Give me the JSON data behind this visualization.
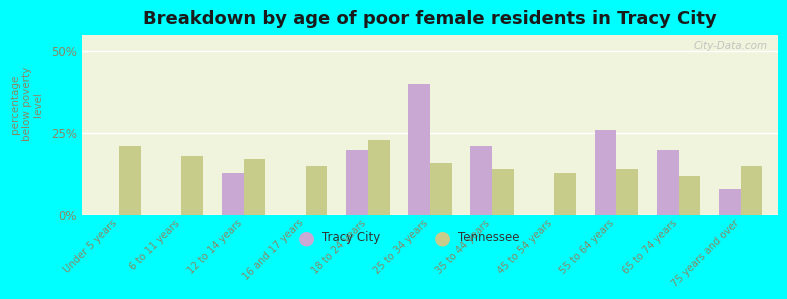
{
  "title": "Breakdown by age of poor female residents in Tracy City",
  "ylabel": "percentage\nbelow poverty\nlevel",
  "categories": [
    "Under 5 years",
    "6 to 11 years",
    "12 to 14 years",
    "16 and 17 years",
    "18 to 24 years",
    "25 to 34 years",
    "35 to 44 years",
    "45 to 54 years",
    "55 to 64 years",
    "65 to 74 years",
    "75 years and over"
  ],
  "tracy_city": [
    0,
    0,
    13,
    0,
    20,
    40,
    21,
    0,
    26,
    20,
    8
  ],
  "tennessee": [
    21,
    18,
    17,
    15,
    23,
    16,
    14,
    13,
    14,
    12,
    15
  ],
  "tracy_color": "#c9a8d4",
  "tennessee_color": "#c8cc8a",
  "background_plot_top": "#f0f4dc",
  "background_plot_bottom": "#e0edd8",
  "background_fig": "#00ffff",
  "ylim": [
    0,
    55
  ],
  "yticks": [
    0,
    25,
    50
  ],
  "ytick_labels": [
    "0%",
    "25%",
    "50%"
  ],
  "title_fontsize": 13,
  "axis_color": "#888866",
  "legend_labels": [
    "Tracy City",
    "Tennessee"
  ],
  "watermark": "City-Data.com"
}
